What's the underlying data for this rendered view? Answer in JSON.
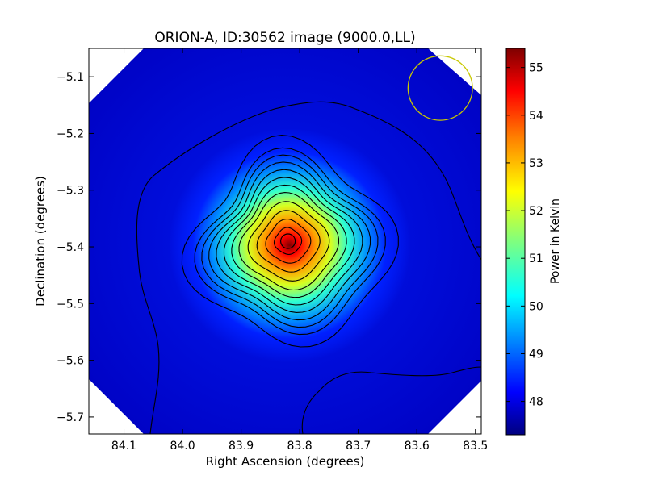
{
  "chart_data": {
    "type": "heatmap",
    "title": "ORION-A, ID:30562 image (9000.0,LL)",
    "xlabel": "Right Ascension (degrees)",
    "ylabel": "Declination (degrees)",
    "colorbar_label": "Power in Kelvin",
    "colormap": "jet",
    "xlim": [
      84.16,
      83.49
    ],
    "ylim": [
      -5.73,
      -5.05
    ],
    "x_reversed": true,
    "x_ticks": [
      84.1,
      84.0,
      83.9,
      83.8,
      83.7,
      83.6,
      83.5
    ],
    "x_tick_labels": [
      "84.1",
      "84.0",
      "83.9",
      "83.8",
      "83.7",
      "83.6",
      "83.5"
    ],
    "y_ticks": [
      -5.1,
      -5.2,
      -5.3,
      -5.4,
      -5.5,
      -5.6,
      -5.7
    ],
    "y_tick_labels": [
      "−5.1",
      "−5.2",
      "−5.3",
      "−5.4",
      "−5.5",
      "−5.6",
      "−5.7"
    ],
    "color_range": [
      47.3,
      55.4
    ],
    "colorbar_ticks": [
      48,
      49,
      50,
      51,
      52,
      53,
      54,
      55
    ],
    "colorbar_tick_labels": [
      "48",
      "49",
      "50",
      "51",
      "52",
      "53",
      "54",
      "55"
    ],
    "peak": {
      "ra": 83.82,
      "dec": -5.39,
      "value": 55.3
    },
    "background_value": 47.5,
    "beam_circle": {
      "ra": 83.56,
      "dec": -5.12,
      "radius_deg": 0.055,
      "color": "#c8c800"
    },
    "peak_marker_color": "#000000",
    "contour_color": "#000000",
    "grid": false
  }
}
